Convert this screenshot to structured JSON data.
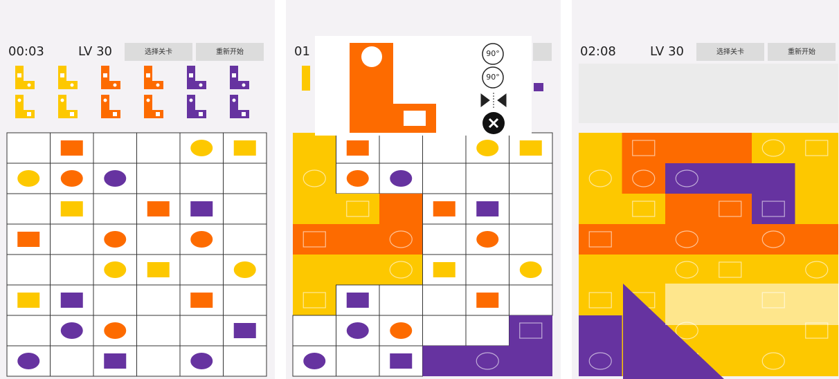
{
  "panels": [
    {
      "timer": "00:03",
      "level": "LV 30",
      "buttons": [
        "选择关卡",
        "重新开始"
      ]
    },
    {
      "timer": "01",
      "tools": [
        "90°",
        "90°"
      ]
    },
    {
      "timer": "02:08",
      "level": "LV 30",
      "buttons": [
        "选择关卡",
        "重新开始"
      ]
    }
  ]
}
